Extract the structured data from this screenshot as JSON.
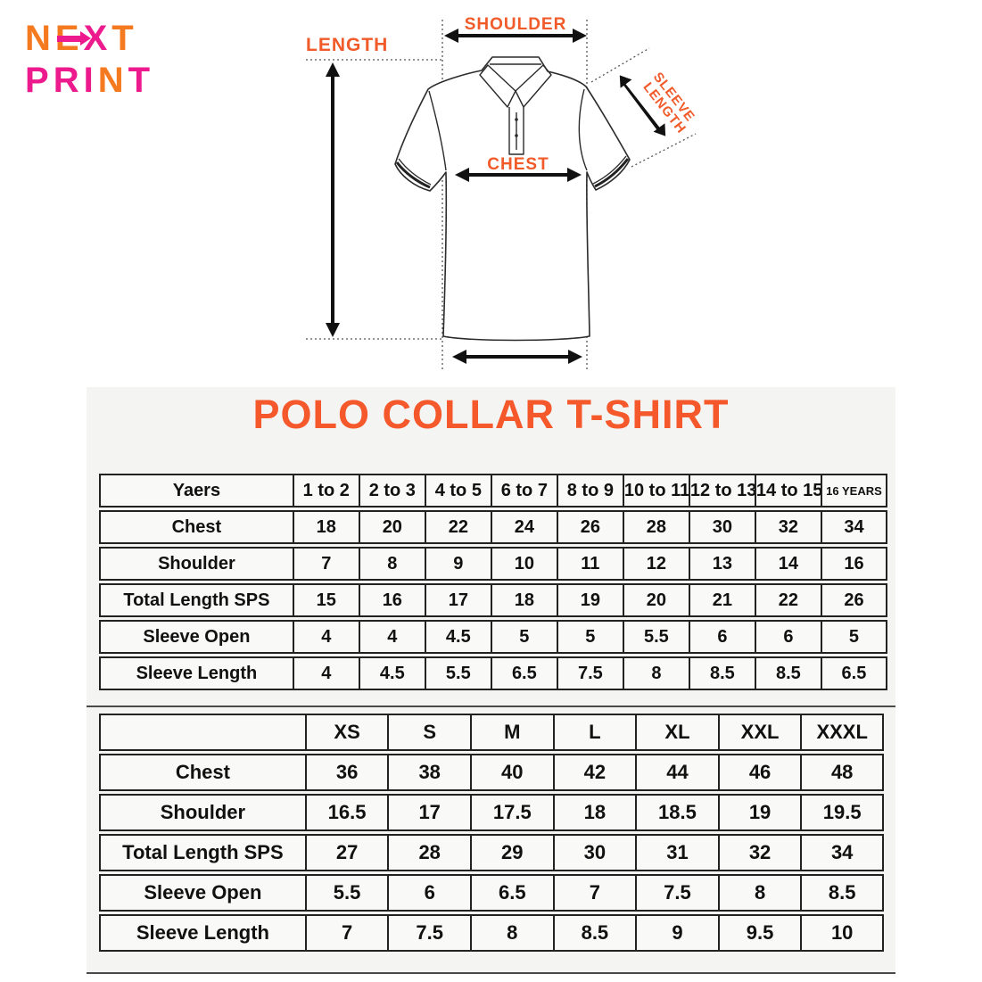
{
  "colors": {
    "accent_orange": "#f4582b",
    "diagram_label_orange": "#f15a29",
    "logo_orange": "#f4791f",
    "logo_magenta": "#ec1a8d",
    "table_border": "#222222",
    "panel_background": "#f4f4f3"
  },
  "logo": {
    "line1": "NEXT",
    "line1_colors": [
      "#f4791f",
      "#f4791f",
      "#ec1a8d",
      "#f4791f"
    ],
    "line2": "PRINT",
    "line2_colors": [
      "#ec1a8d",
      "#ec1a8d",
      "#ec1a8d",
      "#f4791f",
      "#ec1a8d"
    ]
  },
  "diagram": {
    "length_label": "LENGTH",
    "shoulder_label": "SHOULDER",
    "chest_label": "CHEST",
    "sleeve_label_line1": "SLEEVE",
    "sleeve_label_line2": "LENGTH"
  },
  "title": "POLO COLLAR T-SHIRT",
  "kids_table": {
    "header": [
      "Yaers",
      "1 to 2",
      "2 to 3",
      "4 to 5",
      "6 to 7",
      "8 to 9",
      "10 to 11",
      "12 to 13",
      "14 to 15",
      "16 YEARS"
    ],
    "rows": [
      {
        "label": "Chest",
        "values": [
          "18",
          "20",
          "22",
          "24",
          "26",
          "28",
          "30",
          "32",
          "34"
        ]
      },
      {
        "label": "Shoulder",
        "values": [
          "7",
          "8",
          "9",
          "10",
          "11",
          "12",
          "13",
          "14",
          "16"
        ]
      },
      {
        "label": "Total Length SPS",
        "values": [
          "15",
          "16",
          "17",
          "18",
          "19",
          "20",
          "21",
          "22",
          "26"
        ]
      },
      {
        "label": "Sleeve Open",
        "values": [
          "4",
          "4",
          "4.5",
          "5",
          "5",
          "5.5",
          "6",
          "6",
          "5"
        ]
      },
      {
        "label": "Sleeve Length",
        "values": [
          "4",
          "4.5",
          "5.5",
          "6.5",
          "7.5",
          "8",
          "8.5",
          "8.5",
          "6.5"
        ]
      }
    ]
  },
  "adults_table": {
    "header": [
      "",
      "XS",
      "S",
      "M",
      "L",
      "XL",
      "XXL",
      "XXXL"
    ],
    "rows": [
      {
        "label": "Chest",
        "values": [
          "36",
          "38",
          "40",
          "42",
          "44",
          "46",
          "48"
        ]
      },
      {
        "label": "Shoulder",
        "values": [
          "16.5",
          "17",
          "17.5",
          "18",
          "18.5",
          "19",
          "19.5"
        ]
      },
      {
        "label": "Total Length SPS",
        "values": [
          "27",
          "28",
          "29",
          "30",
          "31",
          "32",
          "34"
        ]
      },
      {
        "label": "Sleeve Open",
        "values": [
          "5.5",
          "6",
          "6.5",
          "7",
          "7.5",
          "8",
          "8.5"
        ]
      },
      {
        "label": "Sleeve Length",
        "values": [
          "7",
          "7.5",
          "8",
          "8.5",
          "9",
          "9.5",
          "10"
        ]
      }
    ]
  }
}
